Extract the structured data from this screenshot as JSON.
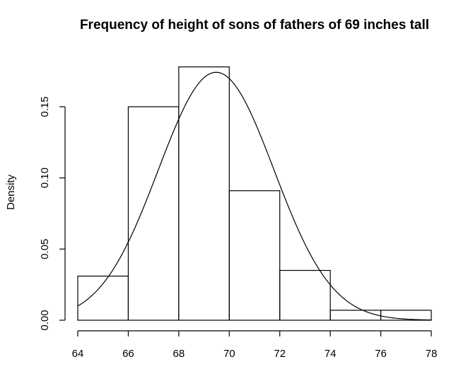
{
  "chart_data": {
    "type": "bar",
    "title": "Frequency of height of sons of fathers of 69 inches tall",
    "xlabel": "",
    "ylabel": "Density",
    "bins": [
      {
        "from": 64,
        "to": 66,
        "density": 0.031
      },
      {
        "from": 66,
        "to": 68,
        "density": 0.15
      },
      {
        "from": 68,
        "to": 70,
        "density": 0.178
      },
      {
        "from": 70,
        "to": 72,
        "density": 0.091
      },
      {
        "from": 72,
        "to": 74,
        "density": 0.035
      },
      {
        "from": 74,
        "to": 76,
        "density": 0.007
      },
      {
        "from": 76,
        "to": 78,
        "density": 0.007
      }
    ],
    "curve": {
      "type": "normal-density",
      "mean": 69.48,
      "sd": 2.29
    },
    "xlim": [
      64,
      78
    ],
    "ylim": [
      0,
      0.18
    ],
    "x_ticks": [
      "64",
      "66",
      "68",
      "70",
      "72",
      "74",
      "76",
      "78"
    ],
    "y_ticks": [
      "0.00",
      "0.05",
      "0.10",
      "0.15"
    ],
    "grid": false,
    "legend": "none"
  }
}
